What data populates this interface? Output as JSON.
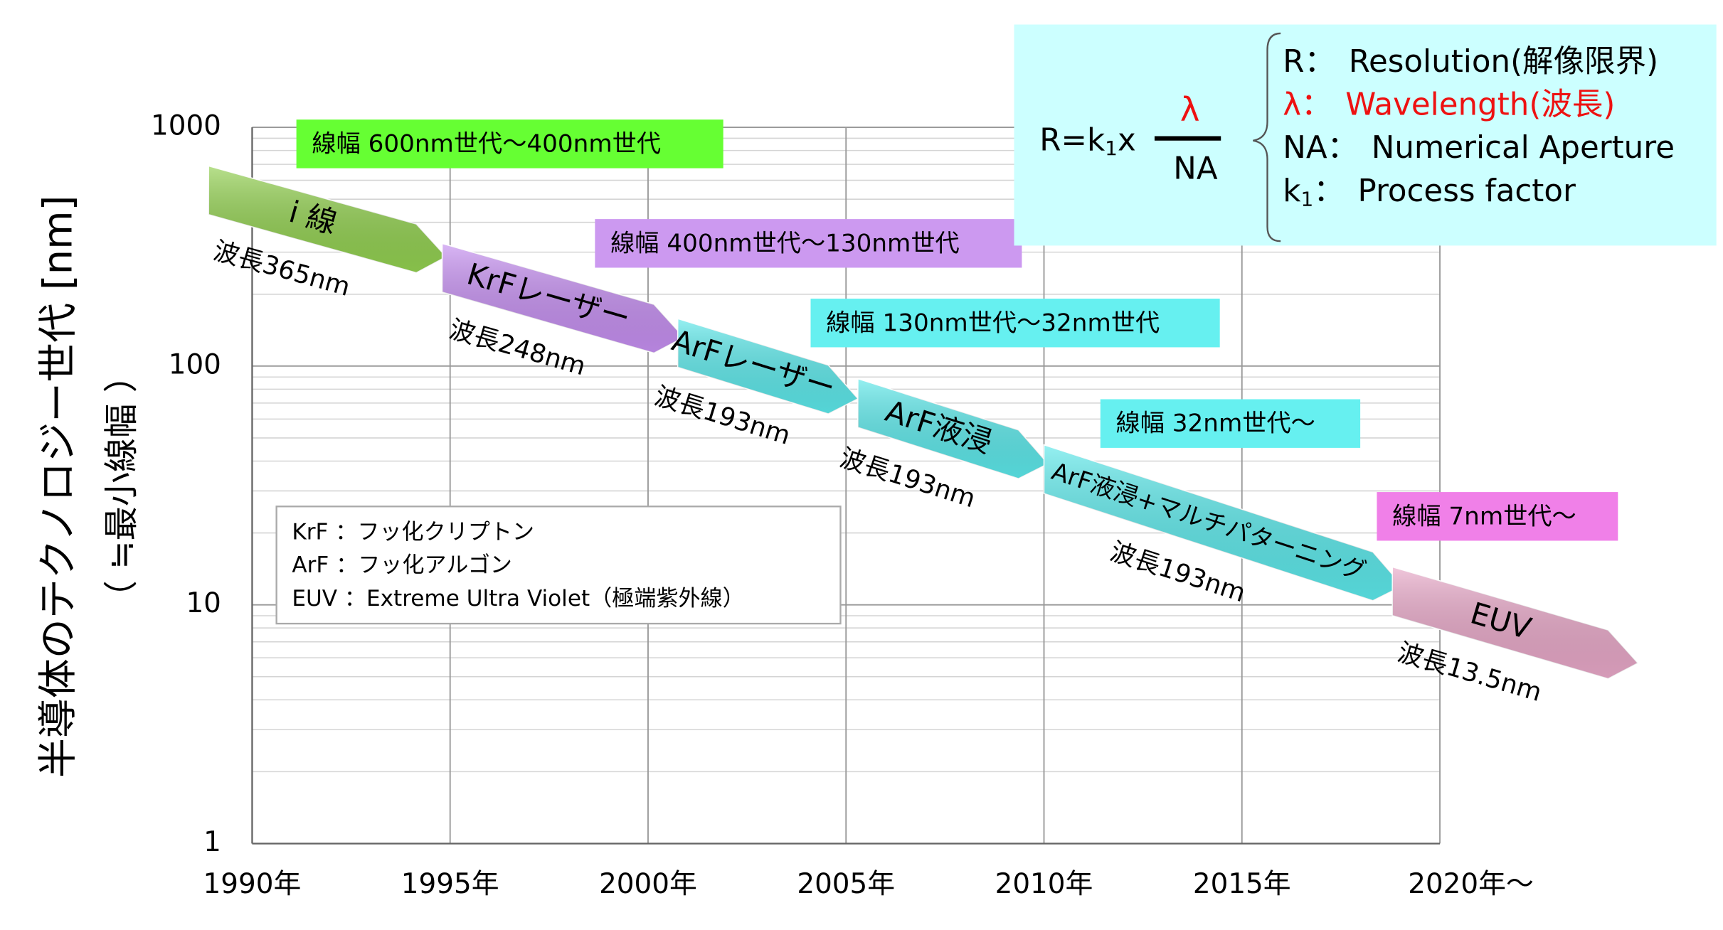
{
  "chart_data": {
    "type": "arrow",
    "y_label": "半導体のテクノロジー世代 [nm]",
    "y_label2": "（ ≒最小線幅 ）",
    "xlim": [
      1990,
      2020
    ],
    "xticks": [
      {
        "value": 1990,
        "label": "1990年"
      },
      {
        "value": 1995,
        "label": "1995年"
      },
      {
        "value": 2000,
        "label": "2000年"
      },
      {
        "value": 2005,
        "label": "2005年"
      },
      {
        "value": 2010,
        "label": "2010年"
      },
      {
        "value": 2015,
        "label": "2015年"
      },
      {
        "value": 2020,
        "label": "2020年～"
      }
    ],
    "ylim": [
      1,
      1000
    ],
    "log_scale": true,
    "yticks": [
      1,
      10,
      100,
      1000
    ],
    "yminorticks": [
      2,
      3,
      4,
      5,
      6,
      7,
      8,
      9,
      20,
      30,
      40,
      50,
      60,
      70,
      80,
      90,
      200,
      300,
      400,
      500,
      600,
      700,
      800,
      900
    ],
    "grid": true,
    "series": [
      {
        "name": "i 線",
        "wavelength": "波長365nm",
        "color": "#92d050",
        "x": [
          1988.9,
          1994.9
        ],
        "y": [
          545,
          287
        ]
      },
      {
        "name": "KrFレーザー",
        "wavelength": "波長248nm",
        "color": "#c58ff0",
        "x": [
          1994.8,
          2000.9
        ],
        "y": [
          258,
          132
        ]
      },
      {
        "name": "ArFレーザー",
        "wavelength": "波長193nm",
        "color": "#5ce8ea",
        "x": [
          2000.75,
          2005.3
        ],
        "y": [
          125,
          73
        ]
      },
      {
        "name": "ArF液浸",
        "wavelength": "波長193nm",
        "color": "#5ce8ea",
        "x": [
          2005.3,
          2010.1
        ],
        "y": [
          70,
          39
        ]
      },
      {
        "name": "ArF液浸+マルチパターニング",
        "wavelength": "波長193nm",
        "color": "#5ce8ea",
        "x": [
          2010.0,
          2019.05
        ],
        "y": [
          37,
          12
        ]
      },
      {
        "name": "EUV",
        "wavelength": "波長13.5nm",
        "color": "#e8a8c8",
        "x": [
          2018.8,
          2025.0
        ],
        "y": [
          11.4,
          5.7
        ]
      }
    ],
    "generations": [
      {
        "text": "線幅 600nm世代～400nm世代",
        "color": "#66ff33"
      },
      {
        "text": "線幅 400nm世代～130nm世代",
        "color": "#cc99f0"
      },
      {
        "text": "線幅 130nm世代～32nm世代",
        "color": "#66f0f0"
      },
      {
        "text": "線幅 32nm世代～",
        "color": "#66f0f0"
      },
      {
        "text": "線幅 7nm世代～",
        "color": "#f080e8"
      }
    ],
    "legend": [
      "KrF ：フッ化クリプトン",
      "ArF ：フッ化アルゴン",
      "EUV ：Extreme Ultra Violet（極端紫外線）"
    ],
    "formula": {
      "lhs": "R=k",
      "lhs_sub": "1",
      "lhs_tail": "x",
      "numerator": "λ",
      "denominator": "NA",
      "definitions": [
        {
          "symbol": "R：",
          "text": "Resolution(解像限界)",
          "color": "#000000"
        },
        {
          "symbol": "λ：",
          "text": "Wavelength(波長)",
          "color": "#ee1111"
        },
        {
          "symbol": "NA：",
          "text": "Numerical Aperture",
          "color": "#000000"
        },
        {
          "symbol": "k",
          "sub": "1",
          "suffix": "：",
          "text": "Process factor",
          "color": "#000000"
        }
      ]
    }
  }
}
